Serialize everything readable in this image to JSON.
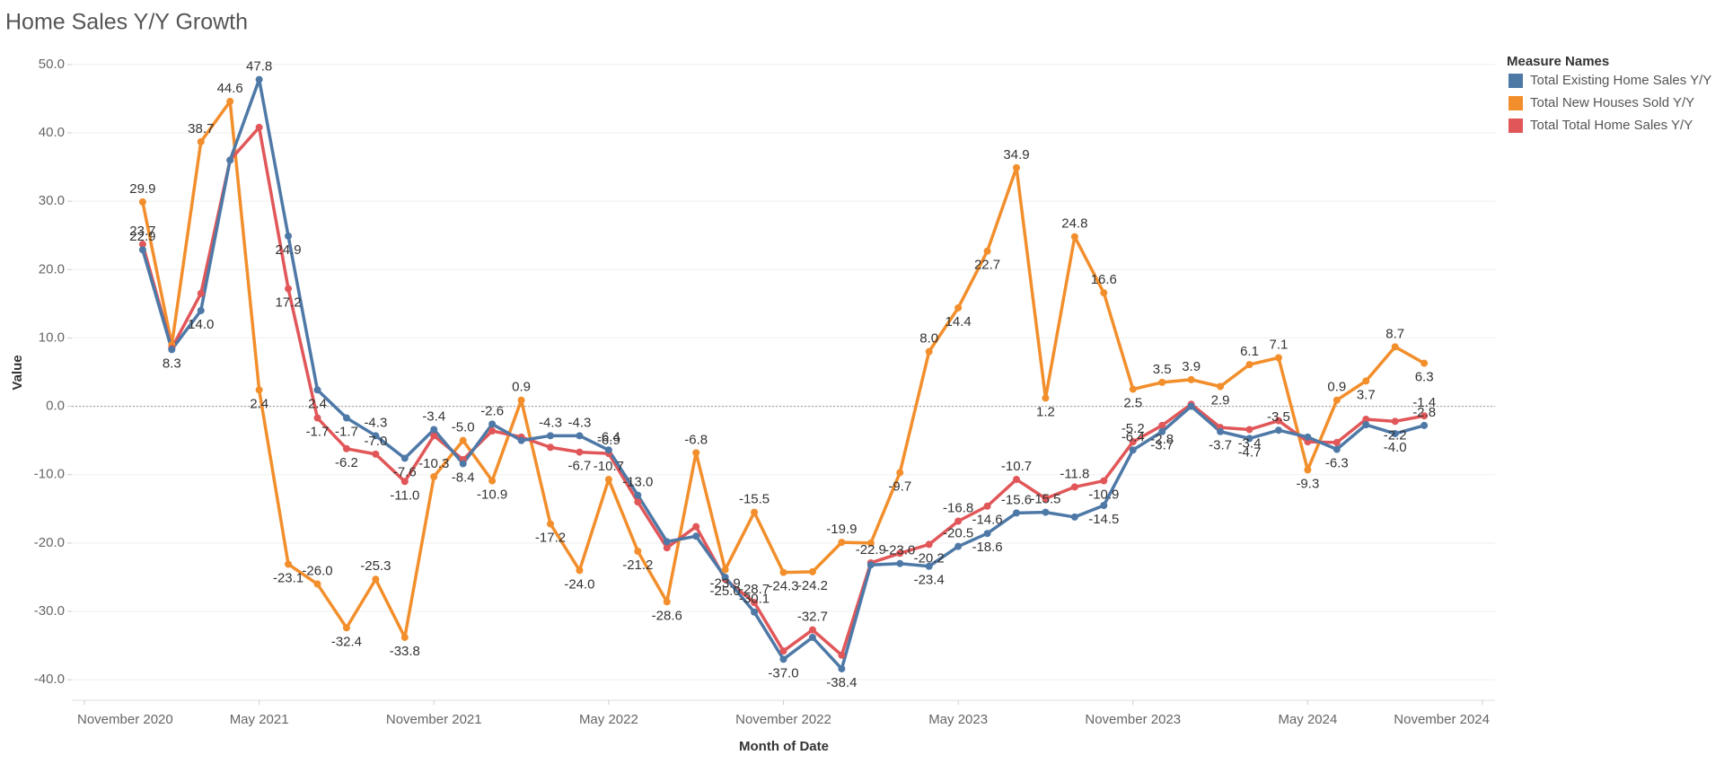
{
  "chart_data": {
    "type": "line",
    "title": "Home Sales Y/Y Growth",
    "x_label": "Month of Date",
    "y_label": "Value",
    "legend_title": "Measure Names",
    "legend": "right",
    "grid": true,
    "x": [
      "2021-01",
      "2021-02",
      "2021-03",
      "2021-04",
      "2021-05",
      "2021-06",
      "2021-07",
      "2021-08",
      "2021-09",
      "2021-10",
      "2021-11",
      "2021-12",
      "2022-01",
      "2022-02",
      "2022-03",
      "2022-04",
      "2022-05",
      "2022-06",
      "2022-07",
      "2022-08",
      "2022-09",
      "2022-10",
      "2022-11",
      "2022-12",
      "2023-01",
      "2023-02",
      "2023-03",
      "2023-04",
      "2023-05",
      "2023-06",
      "2023-07",
      "2023-08",
      "2023-09",
      "2023-10",
      "2023-11",
      "2023-12",
      "2024-01",
      "2024-02",
      "2024-03",
      "2024-04",
      "2024-05",
      "2024-06",
      "2024-07",
      "2024-08",
      "2024-09"
    ],
    "xlim": [
      "2020-11",
      "2024-11"
    ],
    "xticks": [
      {
        "value": "2020-11",
        "label": "November 2020"
      },
      {
        "value": "2021-05",
        "label": "May 2021"
      },
      {
        "value": "2021-11",
        "label": "November 2021"
      },
      {
        "value": "2022-05",
        "label": "May 2022"
      },
      {
        "value": "2022-11",
        "label": "November 2022"
      },
      {
        "value": "2023-05",
        "label": "May 2023"
      },
      {
        "value": "2023-11",
        "label": "November 2023"
      },
      {
        "value": "2024-05",
        "label": "May 2024"
      },
      {
        "value": "2024-11",
        "label": "November 2024"
      }
    ],
    "ylim": [
      -43,
      53
    ],
    "yticks": [
      {
        "value": -40,
        "label": "-40.0"
      },
      {
        "value": -30,
        "label": "-30.0"
      },
      {
        "value": -20,
        "label": "-20.0"
      },
      {
        "value": -10,
        "label": "-10.0"
      },
      {
        "value": 0,
        "label": "0.0"
      },
      {
        "value": 10,
        "label": "10.0"
      },
      {
        "value": 20,
        "label": "20.0"
      },
      {
        "value": 30,
        "label": "30.0"
      },
      {
        "value": 40,
        "label": "40.0"
      },
      {
        "value": 50,
        "label": "50.0"
      }
    ],
    "series": [
      {
        "name": "Total Existing Home Sales Y/Y",
        "color": "#4e79a7",
        "values": [
          22.9,
          8.3,
          14.0,
          36.0,
          47.8,
          24.9,
          2.4,
          -1.7,
          -4.3,
          -7.6,
          -3.4,
          -8.4,
          -2.6,
          -5.0,
          -4.3,
          -4.3,
          -6.4,
          -13.0,
          -19.8,
          -19.0,
          -25.0,
          -30.1,
          -37.0,
          -33.8,
          -38.4,
          -23.2,
          -23.0,
          -23.4,
          -20.5,
          -18.6,
          -15.6,
          -15.5,
          -16.2,
          -14.5,
          -6.4,
          -3.7,
          0.0,
          -3.7,
          -4.7,
          -3.5,
          -4.5,
          -6.3,
          -2.7,
          -4.0,
          -2.8
        ],
        "value_labels": [
          "22.9",
          "8.3",
          "14.0",
          null,
          "47.8",
          "24.9",
          "2.4",
          "-1.7",
          "-4.3",
          "-7.6",
          "-3.4",
          "-8.4",
          "-2.6",
          null,
          "-4.3",
          "-4.3",
          "-6.4",
          "-13.0",
          null,
          null,
          "-25.0",
          "-30.1",
          "-37.0",
          null,
          "-38.4",
          null,
          "-23.0",
          "-23.4",
          "-20.5",
          "-18.6",
          "-15.6",
          "-15.5",
          null,
          "-14.5",
          "-6.4",
          "-3.7",
          null,
          "-3.7",
          "-4.7",
          "-3.5",
          null,
          "-6.3",
          null,
          "-4.0",
          "-2.8"
        ]
      },
      {
        "name": "Total New Houses Sold Y/Y",
        "color": "#f28e2b",
        "values": [
          29.9,
          9.0,
          38.7,
          44.6,
          2.4,
          -23.1,
          -26.0,
          -32.4,
          -25.3,
          -33.8,
          -10.3,
          -5.0,
          -10.9,
          0.9,
          -17.2,
          -24.0,
          -10.7,
          -21.2,
          -28.6,
          -6.8,
          -23.9,
          -15.5,
          -24.3,
          -24.2,
          -19.9,
          -20.0,
          -9.7,
          8.0,
          14.4,
          22.7,
          34.9,
          1.2,
          24.8,
          16.6,
          2.5,
          3.5,
          3.9,
          2.9,
          6.1,
          7.1,
          -9.3,
          0.9,
          3.7,
          8.7,
          6.3
        ],
        "value_labels": [
          "29.9",
          null,
          "38.7",
          "44.6",
          "2.4",
          "-23.1",
          "-26.0",
          "-32.4",
          "-25.3",
          "-33.8",
          "-10.3",
          "-5.0",
          "-10.9",
          "0.9",
          "-17.2",
          "-24.0",
          "-10.7",
          "-21.2",
          "-28.6",
          "-6.8",
          "-23.9",
          "-15.5",
          "-24.3",
          "-24.2",
          "-19.9",
          null,
          "-9.7",
          "8.0",
          "14.4",
          "22.7",
          "34.9",
          "1.2",
          "24.8",
          "16.6",
          "2.5",
          "3.5",
          "3.9",
          "2.9",
          "6.1",
          "7.1",
          "-9.3",
          "0.9",
          "3.7",
          "8.7",
          "6.3"
        ]
      },
      {
        "name": "Total Total Home Sales Y/Y",
        "color": "#e15759",
        "values": [
          23.7,
          8.5,
          16.5,
          36.0,
          40.8,
          17.2,
          -1.7,
          -6.2,
          -7.0,
          -11.0,
          -4.3,
          -7.8,
          -3.6,
          -4.5,
          -6.0,
          -6.7,
          -6.9,
          -14.0,
          -20.7,
          -17.6,
          -25.3,
          -28.7,
          -35.8,
          -32.7,
          -36.4,
          -22.9,
          -21.5,
          -20.2,
          -16.8,
          -14.6,
          -10.7,
          -13.5,
          -11.8,
          -10.9,
          -5.2,
          -2.8,
          0.3,
          -3.1,
          -3.4,
          -2.1,
          -5.2,
          -5.3,
          -1.9,
          -2.2,
          -1.4
        ],
        "value_labels": [
          "23.7",
          null,
          null,
          null,
          null,
          "17.2",
          "-1.7",
          "-6.2",
          "-7.0",
          "-11.0",
          null,
          null,
          null,
          null,
          null,
          "-6.7",
          "-6.9",
          null,
          null,
          null,
          null,
          "-28.7",
          null,
          "-32.7",
          null,
          "-22.9",
          null,
          "-20.2",
          "-16.8",
          "-14.6",
          "-10.7",
          null,
          "-11.8",
          "-10.9",
          "-5.2",
          "-2.8",
          null,
          null,
          "-3.4",
          null,
          null,
          null,
          null,
          "-2.2",
          "-1.4"
        ]
      }
    ]
  }
}
